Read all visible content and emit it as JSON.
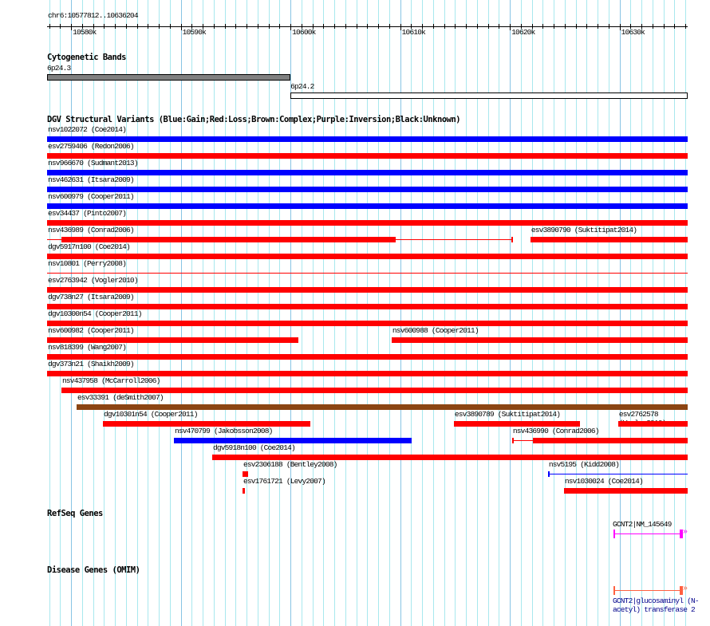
{
  "region": {
    "label": "chr6:10577812..10636204",
    "start": 10577812,
    "end": 10636204,
    "ticks": [
      "10580k",
      "10590k",
      "10600k",
      "10610k",
      "10620k",
      "10630k"
    ]
  },
  "cytobands": {
    "title": "Cytogenetic Bands",
    "bands": [
      {
        "name": "6p24.3",
        "start": 10577812,
        "end": 10600000,
        "color": "#808080"
      },
      {
        "name": "6p24.2",
        "start": 10600000,
        "end": 10636204,
        "color": "#ffffff"
      }
    ]
  },
  "dgv": {
    "title": "DGV Structural Variants (Blue:Gain;Red:Loss;Brown:Complex;Purple:Inversion;Black:Unknown)",
    "colors": {
      "gain": "#0000ff",
      "loss": "#ff0000",
      "complex": "#8b4513"
    },
    "rows": [
      {
        "features": [
          {
            "label": "nsv1022072 (Coe2014)",
            "type": "gain",
            "start": 10577812,
            "end": 10636204
          }
        ]
      },
      {
        "features": [
          {
            "label": "esv2759406 (Redon2006)",
            "type": "loss",
            "start": 10577812,
            "end": 10636204
          }
        ]
      },
      {
        "features": [
          {
            "label": "nsv966670 (Sudmant2013)",
            "type": "gain",
            "start": 10577812,
            "end": 10636204
          }
        ]
      },
      {
        "features": [
          {
            "label": "nsv462631 (Itsara2009)",
            "type": "gain",
            "start": 10577812,
            "end": 10636204
          }
        ]
      },
      {
        "features": [
          {
            "label": "nsv600979 (Cooper2011)",
            "type": "gain",
            "start": 10577812,
            "end": 10636204
          }
        ]
      },
      {
        "features": [
          {
            "label": "esv34437 (Pinto2007)",
            "type": "loss",
            "start": 10577812,
            "end": 10636204
          }
        ]
      },
      {
        "features": [
          {
            "label": "nsv436989 (Conrad2006)",
            "type": "loss",
            "start": 10577812,
            "end": 10620198,
            "thickStart": 10579121,
            "thickEnd": 10609583,
            "endTick": true
          },
          {
            "label": "esv3890790 (Suktitipat2014)",
            "type": "loss",
            "start": 10621870,
            "end": 10636204
          }
        ]
      },
      {
        "features": [
          {
            "label": "dgv5917n100 (Coe2014)",
            "type": "loss",
            "start": 10577812,
            "end": 10636204
          }
        ]
      },
      {
        "features": [
          {
            "label": "nsv10801 (Perry2008)",
            "type": "loss",
            "start": 10577812,
            "end": 10636204,
            "thin": true
          }
        ]
      },
      {
        "features": [
          {
            "label": "esv2763942 (Vogler2010)",
            "type": "loss",
            "start": 10577812,
            "end": 10636204
          }
        ]
      },
      {
        "features": [
          {
            "label": "dgv738n27 (Itsara2009)",
            "type": "loss",
            "start": 10577812,
            "end": 10636204
          }
        ]
      },
      {
        "features": [
          {
            "label": "dgv10300n54 (Cooper2011)",
            "type": "loss",
            "start": 10577812,
            "end": 10636204
          }
        ]
      },
      {
        "features": [
          {
            "label": "nsv600982 (Cooper2011)",
            "type": "loss",
            "start": 10577812,
            "end": 10600714
          },
          {
            "label": "nsv600988 (Cooper2011)",
            "type": "loss",
            "start": 10609220,
            "end": 10636204
          }
        ]
      },
      {
        "features": [
          {
            "label": "nsv818399 (Wang2007)",
            "type": "loss",
            "start": 10577812,
            "end": 10636204
          }
        ]
      },
      {
        "features": [
          {
            "label": "dgv373n21 (Shaikh2009)",
            "type": "loss",
            "start": 10577812,
            "end": 10636204
          }
        ]
      },
      {
        "features": [
          {
            "label": "nsv437958 (McCarroll2006)",
            "type": "loss",
            "start": 10579121,
            "end": 10636204
          }
        ]
      },
      {
        "features": [
          {
            "label": "esv33391 (deSmith2007)",
            "type": "complex",
            "start": 10580502,
            "end": 10636204
          }
        ]
      },
      {
        "features": [
          {
            "label": "dgv10301n54 (Cooper2011)",
            "type": "loss",
            "start": 10582901,
            "end": 10601805
          },
          {
            "label": "esv3890789 (Suktitipat2014)",
            "type": "loss",
            "start": 10614889,
            "end": 10626376
          },
          {
            "label": "esv2762578 (Vogler2010)",
            "type": "loss",
            "start": 10629866,
            "end": 10636204
          }
        ]
      },
      {
        "features": [
          {
            "label": "nsv470799 (Jakobsson2008)",
            "type": "gain",
            "start": 10589372,
            "end": 10611037
          },
          {
            "label": "nsv436990 (Conrad2006)",
            "type": "loss",
            "start": 10620198,
            "end": 10636204,
            "thickStart": 10622088,
            "thickEnd": 10636204,
            "startTick": true
          }
        ]
      },
      {
        "features": [
          {
            "label": "dgv5918n100 (Coe2014)",
            "type": "loss",
            "start": 10592861,
            "end": 10636204
          }
        ]
      },
      {
        "features": [
          {
            "label": "esv2306188 (Bentley2008)",
            "type": "loss",
            "start": 10595624,
            "end": 10596133
          },
          {
            "label": "nsv5195 (Kidd2008)",
            "type": "gain",
            "start": 10623469,
            "end": 10636204,
            "thickStart": 10623469,
            "thickEnd": 10623500,
            "startTick": true
          }
        ]
      },
      {
        "features": [
          {
            "label": "esv1761721 (Levy2007)",
            "type": "loss",
            "start": 10595624,
            "end": 10595842
          },
          {
            "label": "nsv1030024 (Coe2014)",
            "type": "loss",
            "start": 10624923,
            "end": 10636204
          }
        ]
      }
    ]
  },
  "refseq": {
    "title": "RefSeq Genes",
    "label": "GCNT2|NM_145649",
    "color": "#ff00ff",
    "start": 10629430,
    "end": 10636204
  },
  "omim": {
    "title": "Disease Genes (OMIM)",
    "label": "GCNT2|glucosaminyl (N-acetyl) transferase 2",
    "color": "#ff6040",
    "start": 10629430,
    "end": 10636204
  }
}
